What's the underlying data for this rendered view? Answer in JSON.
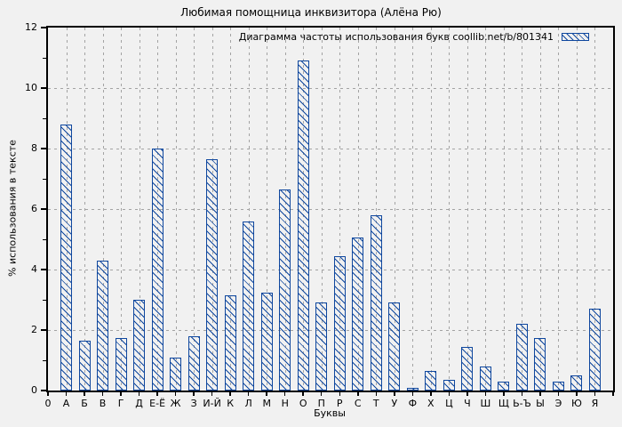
{
  "title": "Любимая помощница инквизитора (Алёна Рю)",
  "legend": {
    "label": "Диаграмма частоты использования букв coollib.net/b/801341"
  },
  "axes": {
    "x_label": "Буквы",
    "y_label": "% использования в тексте",
    "origin_label": "0",
    "y_major_ticks": [
      0,
      2,
      4,
      6,
      8,
      10,
      12
    ],
    "y_minor_ticks": [
      1,
      3,
      5,
      7,
      9,
      11
    ]
  },
  "colors": {
    "bar_blue": "#0f479e",
    "grid_gray": "#a3a3a3",
    "frame_black": "#000000",
    "background": "#f1f1f1"
  },
  "chart_data": {
    "type": "bar",
    "title": "Любимая помощница инквизитора (Алёна Рю)",
    "legend": "Диаграмма частоты использования букв coollib.net/b/801341",
    "legend_position": "top-right",
    "xlabel": "Буквы",
    "ylabel": "% использования в тексте",
    "ylim": [
      0,
      12
    ],
    "grid": true,
    "hatch": "diagonal",
    "categories": [
      "А",
      "Б",
      "В",
      "Г",
      "Д",
      "Е-Ё",
      "Ж",
      "З",
      "И-Й",
      "К",
      "Л",
      "М",
      "Н",
      "О",
      "П",
      "Р",
      "С",
      "Т",
      "У",
      "Ф",
      "Х",
      "Ц",
      "Ч",
      "Ш",
      "Щ",
      "Ь-Ъ",
      "Ы",
      "Э",
      "Ю",
      "Я"
    ],
    "values": [
      8.8,
      1.65,
      4.3,
      1.75,
      3.0,
      8.0,
      1.1,
      1.8,
      7.65,
      3.15,
      5.6,
      3.25,
      6.65,
      10.9,
      2.9,
      4.45,
      5.05,
      5.8,
      2.9,
      0.1,
      0.65,
      0.35,
      1.45,
      0.8,
      0.3,
      2.2,
      1.75,
      0.3,
      0.5,
      2.7
    ]
  }
}
